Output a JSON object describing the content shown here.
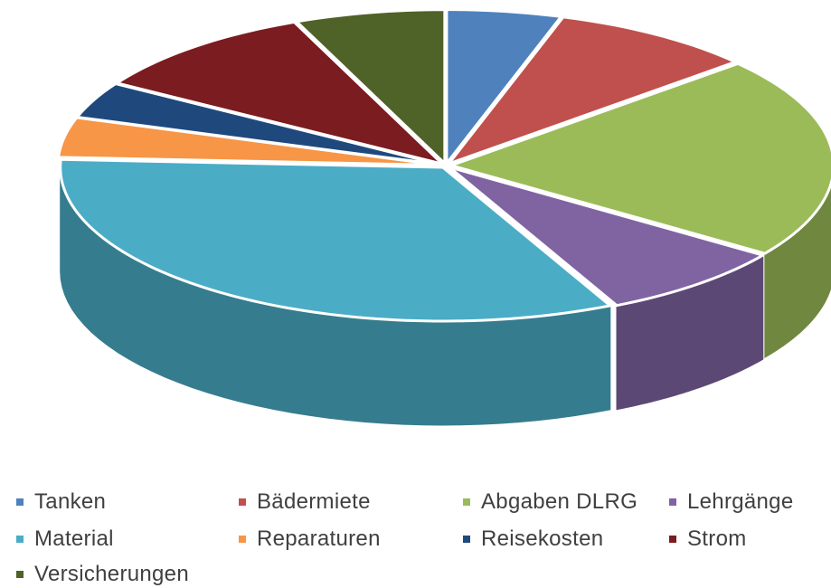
{
  "chart_data": {
    "type": "pie",
    "style": "3d",
    "categories": [
      "Tanken",
      "Bädermiete",
      "Abgaben DLRG",
      "Lehrgänge",
      "Material",
      "Reparaturen",
      "Reisekosten",
      "Strom",
      "Versicherungen"
    ],
    "values": [
      5.2,
      9.3,
      22.8,
      8.7,
      35.5,
      4.5,
      4.1,
      10.6,
      6.8
    ],
    "unit": "percent (estimated share)",
    "colors": [
      "#4f81bd",
      "#c0504d",
      "#9bbb59",
      "#8064a2",
      "#4bacc6",
      "#f79646",
      "#1f497d",
      "#7b1c20",
      "#4f6228"
    ],
    "legend": {
      "position": "bottom",
      "items": [
        {
          "label": "Tanken",
          "color": "#4f81bd"
        },
        {
          "label": "Bädermiete",
          "color": "#c0504d"
        },
        {
          "label": "Abgaben DLRG",
          "color": "#9bbb59"
        },
        {
          "label": "Lehrgänge",
          "color": "#8064a2"
        },
        {
          "label": "Material",
          "color": "#4bacc6"
        },
        {
          "label": "Reparaturen",
          "color": "#f79646"
        },
        {
          "label": "Reisekosten",
          "color": "#1f497d"
        },
        {
          "label": "Strom",
          "color": "#7b1c20"
        },
        {
          "label": "Versicherungen",
          "color": "#4f6228"
        }
      ]
    },
    "title": ""
  }
}
